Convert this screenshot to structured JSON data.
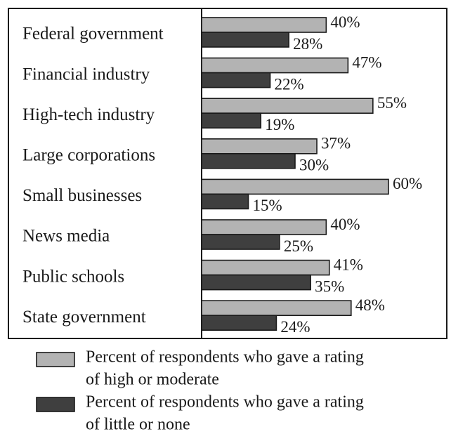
{
  "chart_data": {
    "type": "bar",
    "orientation": "horizontal",
    "categories": [
      "Federal government",
      "Financial industry",
      "High-tech industry",
      "Large corporations",
      "Small businesses",
      "News media",
      "Public schools",
      "State government"
    ],
    "series": [
      {
        "name": "Percent of respondents who gave a rating of high or moderate",
        "legend_lines": [
          "Percent of respondents who gave a rating",
          "of high or moderate"
        ],
        "color": "#b3b3b3",
        "values": [
          40,
          47,
          55,
          37,
          60,
          40,
          41,
          48
        ],
        "labels": [
          "40%",
          "47%",
          "55%",
          "37%",
          "60%",
          "40%",
          "41%",
          "48%"
        ]
      },
      {
        "name": "Percent of respondents who gave a rating of little or none",
        "legend_lines": [
          "Percent of respondents who gave a rating",
          "of little or none"
        ],
        "color": "#3f3f3f",
        "values": [
          28,
          22,
          19,
          30,
          15,
          25,
          35,
          24
        ],
        "labels": [
          "28%",
          "22%",
          "19%",
          "30%",
          "15%",
          "25%",
          "35%",
          "24%"
        ]
      }
    ],
    "title": "",
    "xlabel": "",
    "ylabel": "",
    "xlim": [
      0,
      60
    ],
    "grid": false,
    "legend_position": "bottom"
  }
}
